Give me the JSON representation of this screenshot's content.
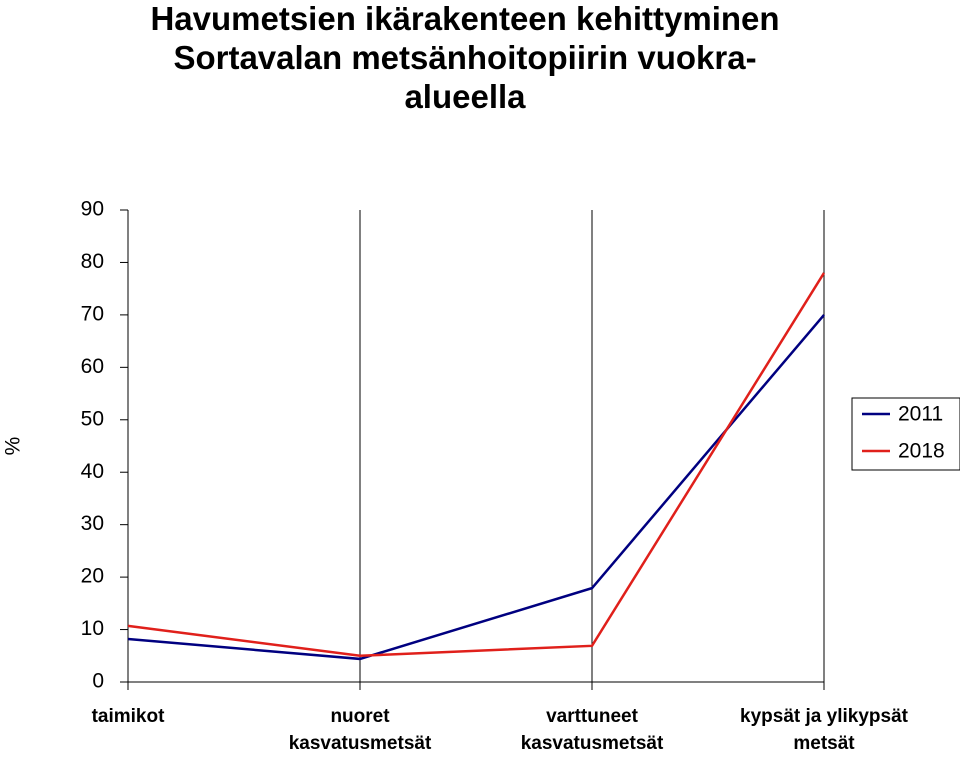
{
  "chart_data": {
    "type": "line",
    "title": "Havumetsien ikärakenteen kehittyminen\nSortavalan metsänhoitopiirin vuokra-\nalueella",
    "y_label": "%",
    "categories": [
      "taimikot",
      "nuoret\nkasvatusmetsät",
      "varttuneet\nkasvatusmetsät",
      "kypsät ja ylikypsät\nmetsät"
    ],
    "series": [
      {
        "name": "2011",
        "color": "#000080",
        "values": [
          8.2,
          4.4,
          17.9,
          70.0
        ]
      },
      {
        "name": "2018",
        "color": "#e0201b",
        "values": [
          10.7,
          5.0,
          6.9,
          78.0
        ]
      }
    ],
    "ylim": [
      0,
      90
    ],
    "yticks": [
      0,
      10,
      20,
      30,
      40,
      50,
      60,
      70,
      80,
      90
    ],
    "legend": "right"
  }
}
